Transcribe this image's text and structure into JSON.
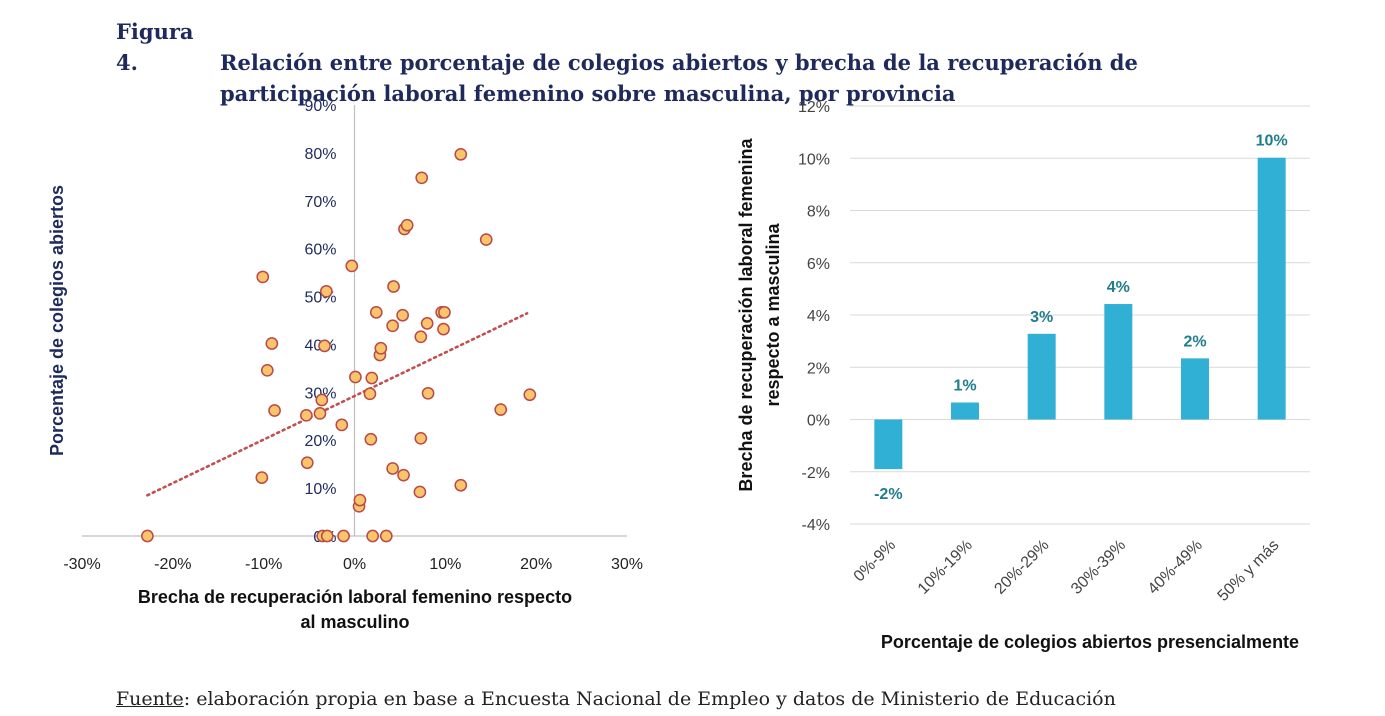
{
  "figure": {
    "number": "Figura 4.",
    "title_line1": "Relación entre porcentaje de colegios abiertos y brecha de la recuperación de",
    "title_line2": "participación laboral femenino sobre masculina, por provincia",
    "source_label": "Fuente",
    "source_text": ": elaboración propia en base a Encuesta Nacional de Empleo y datos de Ministerio de Educación"
  },
  "colors": {
    "text_dark": "#1f2a5c",
    "point_fill": "#f9c46a",
    "point_stroke": "#b84a4a",
    "trend": "#c0504d",
    "bar": "#31b0d5",
    "bar_label": "#1f7d8c",
    "grid": "#d9d9d9"
  },
  "chart_data": [
    {
      "type": "scatter",
      "title": "",
      "xlabel": "Brecha de recuperación laboral femenino respecto al masculino",
      "xlabel_lines": [
        "Brecha de recuperación laboral femenino respecto",
        "al masculino"
      ],
      "ylabel": "Porcentaje de colegios abiertos",
      "xlim": [
        -0.3,
        0.3
      ],
      "ylim": [
        0,
        0.9
      ],
      "x_ticks": [
        {
          "value": -0.3,
          "label": "-30%"
        },
        {
          "value": -0.2,
          "label": "-20%"
        },
        {
          "value": -0.1,
          "label": "-10%"
        },
        {
          "value": 0,
          "label": "0%"
        },
        {
          "value": 0.1,
          "label": "10%"
        },
        {
          "value": 0.2,
          "label": "20%"
        },
        {
          "value": 0.3,
          "label": "30%"
        }
      ],
      "y_ticks": [
        {
          "value": 0,
          "label": "0%"
        },
        {
          "value": 0.1,
          "label": "10%"
        },
        {
          "value": 0.2,
          "label": "20%"
        },
        {
          "value": 0.3,
          "label": "30%"
        },
        {
          "value": 0.4,
          "label": "40%"
        },
        {
          "value": 0.5,
          "label": "50%"
        },
        {
          "value": 0.6,
          "label": "60%"
        },
        {
          "value": 0.7,
          "label": "70%"
        },
        {
          "value": 0.8,
          "label": "80%"
        },
        {
          "value": 0.9,
          "label": "90%"
        }
      ],
      "points": [
        {
          "x": -0.228,
          "y": 0.0
        },
        {
          "x": -0.035,
          "y": 0.0
        },
        {
          "x": -0.03,
          "y": 0.0
        },
        {
          "x": -0.012,
          "y": 0.0
        },
        {
          "x": 0.02,
          "y": 0.0
        },
        {
          "x": 0.035,
          "y": 0.0
        },
        {
          "x": 0.005,
          "y": 0.062
        },
        {
          "x": 0.006,
          "y": 0.075
        },
        {
          "x": 0.072,
          "y": 0.092
        },
        {
          "x": 0.117,
          "y": 0.106
        },
        {
          "x": -0.102,
          "y": 0.122
        },
        {
          "x": 0.054,
          "y": 0.127
        },
        {
          "x": 0.042,
          "y": 0.141
        },
        {
          "x": -0.052,
          "y": 0.153
        },
        {
          "x": 0.018,
          "y": 0.202
        },
        {
          "x": 0.073,
          "y": 0.204
        },
        {
          "x": -0.014,
          "y": 0.232
        },
        {
          "x": -0.053,
          "y": 0.252
        },
        {
          "x": -0.038,
          "y": 0.256
        },
        {
          "x": -0.088,
          "y": 0.262
        },
        {
          "x": 0.161,
          "y": 0.264
        },
        {
          "x": -0.036,
          "y": 0.284
        },
        {
          "x": 0.017,
          "y": 0.297
        },
        {
          "x": 0.081,
          "y": 0.298
        },
        {
          "x": 0.193,
          "y": 0.295
        },
        {
          "x": 0.019,
          "y": 0.33
        },
        {
          "x": 0.001,
          "y": 0.332
        },
        {
          "x": -0.096,
          "y": 0.346
        },
        {
          "x": 0.028,
          "y": 0.378
        },
        {
          "x": 0.029,
          "y": 0.392
        },
        {
          "x": -0.033,
          "y": 0.397
        },
        {
          "x": -0.091,
          "y": 0.402
        },
        {
          "x": 0.073,
          "y": 0.416
        },
        {
          "x": 0.098,
          "y": 0.432
        },
        {
          "x": 0.042,
          "y": 0.439
        },
        {
          "x": 0.08,
          "y": 0.444
        },
        {
          "x": 0.024,
          "y": 0.467
        },
        {
          "x": 0.053,
          "y": 0.461
        },
        {
          "x": 0.096,
          "y": 0.467
        },
        {
          "x": 0.099,
          "y": 0.467
        },
        {
          "x": -0.031,
          "y": 0.511
        },
        {
          "x": 0.043,
          "y": 0.521
        },
        {
          "x": -0.101,
          "y": 0.541
        },
        {
          "x": -0.003,
          "y": 0.564
        },
        {
          "x": 0.145,
          "y": 0.619
        },
        {
          "x": 0.055,
          "y": 0.641
        },
        {
          "x": 0.058,
          "y": 0.649
        },
        {
          "x": 0.074,
          "y": 0.748
        },
        {
          "x": 0.117,
          "y": 0.797
        }
      ],
      "trendline": {
        "x": [
          -0.228,
          0.19
        ],
        "y": [
          0.085,
          0.465
        ]
      }
    },
    {
      "type": "bar",
      "title": "",
      "xlabel": "Porcentaje de colegios abiertos presencialmente",
      "ylabel": "Brecha de recuperación laboral femenina respecto a masculina",
      "ylabel_lines": [
        "Brecha de recuperación laboral femenina",
        "respecto a masculina"
      ],
      "ylim": [
        -0.04,
        0.12
      ],
      "y_ticks": [
        {
          "value": -0.04,
          "label": "-4%"
        },
        {
          "value": -0.02,
          "label": "-2%"
        },
        {
          "value": 0,
          "label": "0%"
        },
        {
          "value": 0.02,
          "label": "2%"
        },
        {
          "value": 0.04,
          "label": "4%"
        },
        {
          "value": 0.06,
          "label": "6%"
        },
        {
          "value": 0.08,
          "label": "8%"
        },
        {
          "value": 0.1,
          "label": "10%"
        },
        {
          "value": 0.12,
          "label": "12%"
        }
      ],
      "categories": [
        "0%-9%",
        "10%-19%",
        "20%-29%",
        "30%-39%",
        "40%-49%",
        "50% y más"
      ],
      "values": [
        -0.019,
        0.0065,
        0.0328,
        0.0442,
        0.0234,
        0.1002
      ],
      "data_labels": [
        "-2%",
        "1%",
        "3%",
        "4%",
        "2%",
        "10%"
      ],
      "grid": true
    }
  ]
}
